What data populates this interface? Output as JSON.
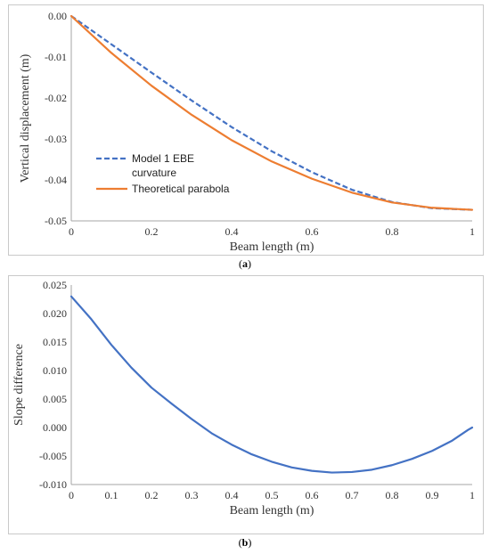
{
  "chart_data": [
    {
      "id": "a",
      "type": "line",
      "caption": "a",
      "xlabel": "Beam length (m)",
      "ylabel": "Vertical displacement (m)",
      "xlim": [
        0,
        1
      ],
      "ylim": [
        -0.05,
        0
      ],
      "x_ticks": [
        "0",
        "0.2",
        "0.4",
        "0.6",
        "0.8",
        "1"
      ],
      "y_ticks": [
        "0.00",
        "-0.01",
        "-0.02",
        "-0.03",
        "-0.04",
        "-0.05"
      ],
      "grid": false,
      "legend_position": "bottom-left",
      "series": [
        {
          "name_lines": [
            "Model 1 EBE",
            "curvature"
          ],
          "style": "dashed",
          "color": "#4472C4",
          "x": [
            0,
            0.1,
            0.2,
            0.3,
            0.4,
            0.5,
            0.6,
            0.7,
            0.8,
            0.9,
            1.0
          ],
          "y": [
            0,
            -0.0069,
            -0.0138,
            -0.0206,
            -0.0271,
            -0.033,
            -0.0381,
            -0.0424,
            -0.0454,
            -0.0469,
            -0.0473
          ]
        },
        {
          "name": "Theoretical parabola",
          "style": "solid",
          "color": "#ED7D31",
          "x": [
            0,
            0.1,
            0.2,
            0.3,
            0.4,
            0.5,
            0.6,
            0.7,
            0.8,
            0.9,
            1.0
          ],
          "y": [
            0,
            -0.009,
            -0.017,
            -0.0241,
            -0.0303,
            -0.0355,
            -0.0397,
            -0.0431,
            -0.0455,
            -0.0468,
            -0.0473
          ]
        }
      ]
    },
    {
      "id": "b",
      "type": "line",
      "caption": "b",
      "xlabel": "Beam length (m)",
      "ylabel": "Slope difference",
      "xlim": [
        0,
        1
      ],
      "ylim": [
        -0.01,
        0.025
      ],
      "x_ticks": [
        "0",
        "0.1",
        "0.2",
        "0.3",
        "0.4",
        "0.5",
        "0.6",
        "0.7",
        "0.8",
        "0.9",
        "1"
      ],
      "y_ticks": [
        "0.025",
        "0.020",
        "0.015",
        "0.010",
        "0.005",
        "0.000",
        "-0.005",
        "-0.010"
      ],
      "grid": false,
      "series": [
        {
          "style": "solid",
          "color": "#4472C4",
          "x": [
            0,
            0.05,
            0.1,
            0.15,
            0.2,
            0.25,
            0.3,
            0.35,
            0.4,
            0.45,
            0.5,
            0.55,
            0.6,
            0.65,
            0.7,
            0.75,
            0.8,
            0.85,
            0.9,
            0.95,
            0.99,
            1.0
          ],
          "y": [
            0.023,
            0.019,
            0.0145,
            0.0105,
            0.007,
            0.0042,
            0.0015,
            -0.001,
            -0.003,
            -0.0047,
            -0.006,
            -0.007,
            -0.0076,
            -0.0079,
            -0.0078,
            -0.0074,
            -0.0066,
            -0.0055,
            -0.0041,
            -0.0023,
            -0.0004,
            0
          ]
        }
      ]
    }
  ]
}
